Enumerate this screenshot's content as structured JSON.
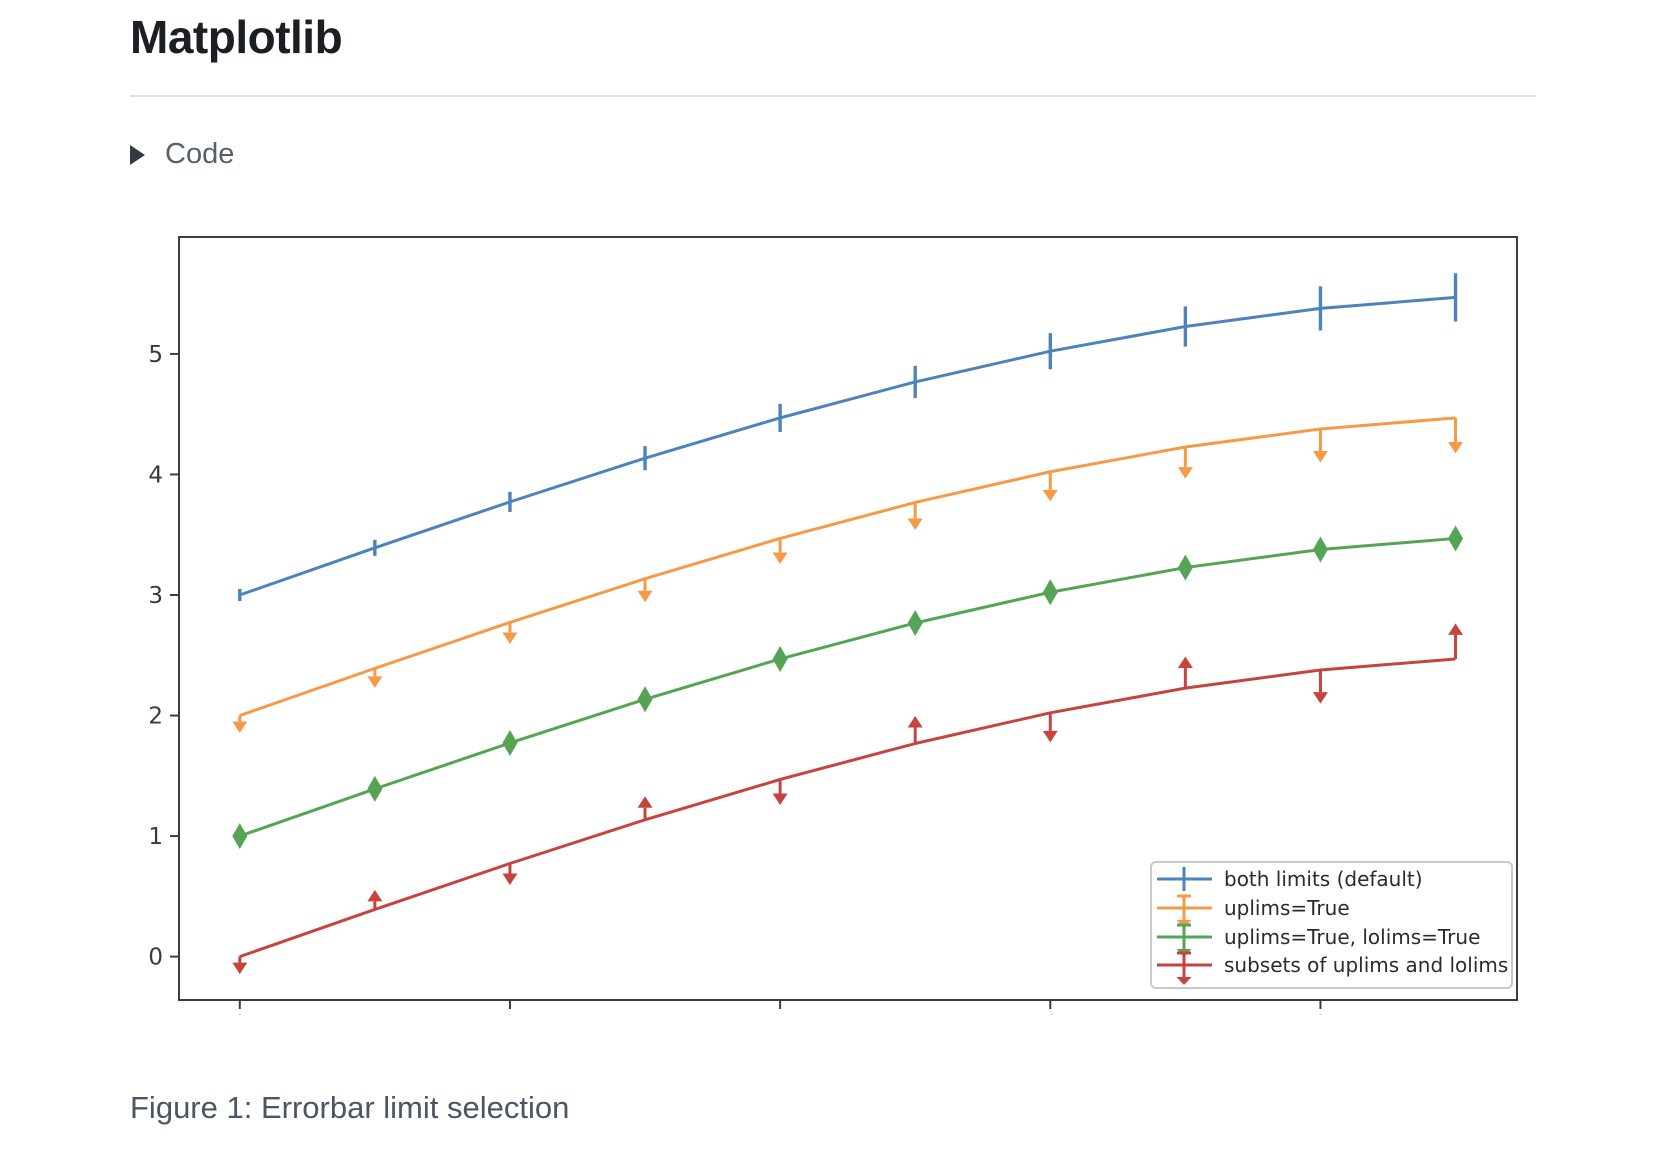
{
  "page": {
    "title": "Matplotlib",
    "code_toggle_label": "Code",
    "caption": "Figure 1: Errorbar limit selection"
  },
  "chart_data": {
    "type": "line",
    "subtype": "errorbar",
    "title": "",
    "xlabel": "",
    "ylabel": "",
    "x": [
      0,
      1,
      2,
      3,
      4,
      5,
      6,
      7,
      8,
      9
    ],
    "yerr": [
      0.05,
      0.0667,
      0.0833,
      0.1,
      0.1167,
      0.1333,
      0.15,
      0.1667,
      0.1833,
      0.2
    ],
    "xlim": [
      -0.45,
      9.455
    ],
    "ylim": [
      -0.36,
      5.97
    ],
    "xticks": [
      0,
      2,
      4,
      6,
      8
    ],
    "yticks": [
      0,
      1,
      2,
      3,
      4,
      5
    ],
    "grid": false,
    "series": [
      {
        "name": "both limits (default)",
        "color": "#4c83ba",
        "limit_style": "none",
        "y": [
          3.0,
          3.3911,
          3.7725,
          4.135,
          4.4695,
          4.7678,
          5.0225,
          5.2275,
          5.3776,
          5.4692
        ]
      },
      {
        "name": "uplims=True",
        "color": "#f59a47",
        "limit_style": "uplims",
        "y": [
          2.0,
          2.3911,
          2.7725,
          3.135,
          3.4695,
          3.7678,
          4.0225,
          4.2275,
          4.3776,
          4.4692
        ]
      },
      {
        "name": "uplims=True, lolims=True",
        "color": "#55a455",
        "limit_style": "uplims+lolims",
        "y": [
          1.0,
          1.3911,
          1.7725,
          2.135,
          2.4695,
          2.7678,
          3.0225,
          3.2275,
          3.3776,
          3.4692
        ]
      },
      {
        "name": "subsets of uplims and lolims",
        "color": "#c5443f",
        "limit_style": "subsets",
        "limits": [
          "uplims",
          "lolims",
          "uplims",
          "lolims",
          "uplims",
          "lolims",
          "uplims",
          "lolims",
          "uplims",
          "lolims"
        ],
        "y": [
          0.0,
          0.3911,
          0.7725,
          1.135,
          1.4695,
          1.7678,
          2.0225,
          2.2275,
          2.3776,
          2.4692
        ]
      }
    ],
    "legend": {
      "position": "lower right",
      "entries": [
        "both limits (default)",
        "uplims=True",
        "uplims=True, lolims=True",
        "subsets of uplims and lolims"
      ]
    },
    "axis_color": "#3d3d3d",
    "tick_label_color": "#3a3a3a",
    "legend_text_color": "#2b2b2b",
    "legend_border_color": "#c9c9c9"
  }
}
